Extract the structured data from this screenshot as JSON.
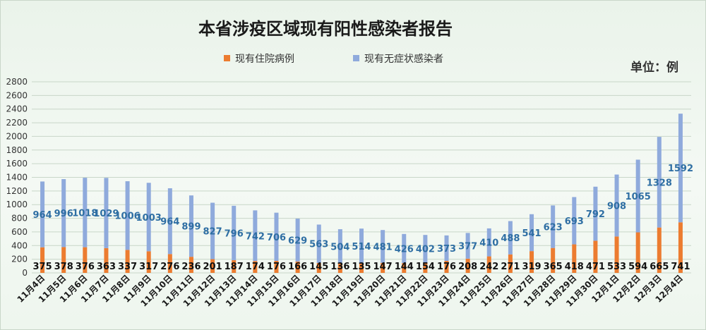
{
  "unit_label": "单位：例",
  "colors": {
    "hospitalized": "#ec7c30",
    "asymptomatic": "#8faadc",
    "grid": "#c8d6c8",
    "label_hospitalized": "#111111",
    "label_asymptomatic": "#2e6ea3"
  },
  "chart_data": {
    "type": "bar",
    "stacked": true,
    "title": "本省涉疫区域现有阳性感染者报告",
    "xlabel": "",
    "ylabel": "",
    "ylim": [
      0,
      2800
    ],
    "ytick_step": 200,
    "grid": true,
    "legend_position": "top-center",
    "categories": [
      "11月4日",
      "11月5日",
      "11月6日",
      "11月7日",
      "11月8日",
      "11月9日",
      "11月10日",
      "11月11日",
      "11月12日",
      "11月13日",
      "11月14日",
      "11月15日",
      "11月16日",
      "11月17日",
      "11月18日",
      "11月19日",
      "11月20日",
      "11月21日",
      "11月22日",
      "11月23日",
      "11月24日",
      "11月25日",
      "11月26日",
      "11月27日",
      "11月28日",
      "11月29日",
      "11月30日",
      "12月1日",
      "12月2日",
      "12月3日",
      "12月4日"
    ],
    "series": [
      {
        "name": "现有住院病例",
        "values": [
          375,
          378,
          376,
          363,
          337,
          317,
          276,
          236,
          201,
          187,
          174,
          176,
          166,
          145,
          136,
          135,
          147,
          144,
          154,
          176,
          208,
          242,
          271,
          319,
          365,
          418,
          471,
          533,
          594,
          665,
          741
        ]
      },
      {
        "name": "现有无症状感染者",
        "values": [
          964,
          996,
          1018,
          1029,
          1006,
          1003,
          964,
          899,
          827,
          796,
          742,
          706,
          629,
          563,
          504,
          514,
          481,
          426,
          402,
          373,
          377,
          410,
          488,
          541,
          623,
          693,
          792,
          908,
          1065,
          1328,
          1592
        ]
      }
    ]
  }
}
